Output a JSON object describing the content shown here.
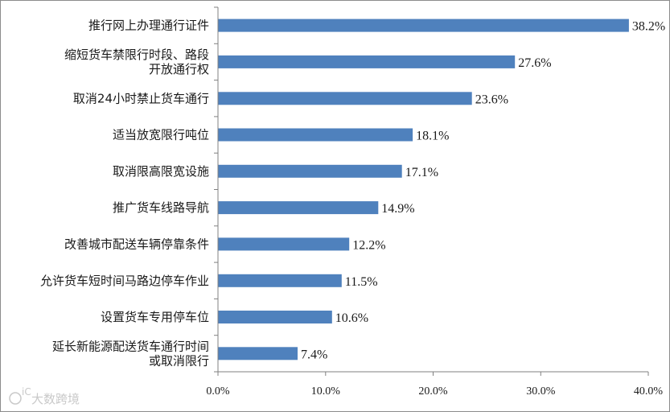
{
  "chart_data": {
    "type": "bar",
    "orientation": "horizontal",
    "categories": [
      [
        "推行网上办理通行证件"
      ],
      [
        "缩短货车禁限行时段、路段",
        "开放通行权"
      ],
      [
        "取消24小时禁止货车通行"
      ],
      [
        "适当放宽限行吨位"
      ],
      [
        "取消限高限宽设施"
      ],
      [
        "推广货车线路导航"
      ],
      [
        "改善城市配送车辆停靠条件"
      ],
      [
        "允许货车短时间马路边停车作业"
      ],
      [
        "设置货车专用停车位"
      ],
      [
        "延长新能源配送货车通行时间",
        "或取消限行"
      ]
    ],
    "values": [
      38.2,
      27.6,
      23.6,
      18.1,
      17.1,
      14.9,
      12.2,
      11.5,
      10.6,
      7.4
    ],
    "value_labels": [
      "38.2%",
      "27.6%",
      "23.6%",
      "18.1%",
      "17.1%",
      "14.9%",
      "12.2%",
      "11.5%",
      "10.6%",
      "7.4%"
    ],
    "x_ticks": [
      0,
      10,
      20,
      30,
      40
    ],
    "x_tick_labels": [
      "0.0%",
      "10.0%",
      "20.0%",
      "30.0%",
      "40.0%"
    ],
    "xlim": [
      0,
      40
    ],
    "bar_color": "#4f81bd",
    "grid": false,
    "legend": "none"
  },
  "watermark": {
    "mark": "iC",
    "text": "大数跨境"
  }
}
